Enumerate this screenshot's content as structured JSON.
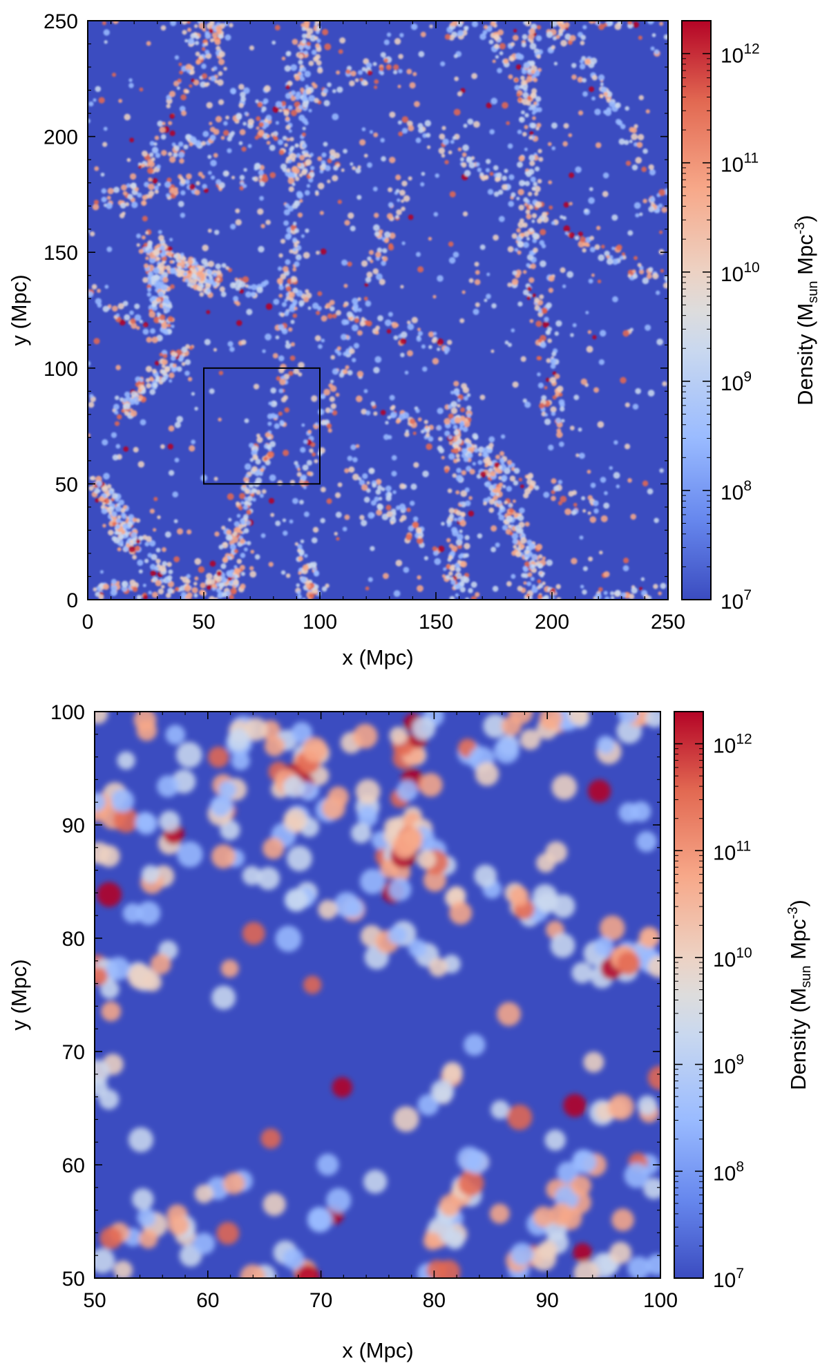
{
  "chart_data": [
    {
      "type": "heatmap",
      "name": "full-box",
      "xlabel": "x (Mpc)",
      "ylabel": "y (Mpc)",
      "xlim": [
        0,
        250
      ],
      "ylim": [
        0,
        250
      ],
      "xticks": [
        0,
        50,
        100,
        150,
        200,
        250
      ],
      "yticks": [
        0,
        50,
        100,
        150,
        200,
        250
      ],
      "xtick_labels": [
        "0",
        "50",
        "100",
        "150",
        "200",
        "250"
      ],
      "ytick_labels": [
        "0",
        "50",
        "100",
        "150",
        "200",
        "250"
      ],
      "colorbar": {
        "label_main": "Density (M",
        "label_sub": "sun",
        "label_mid": " Mpc",
        "label_sup": "-3",
        "label_end": ")",
        "scale": "log",
        "range": [
          10000000,
          2000000000000
        ],
        "ticks": [
          7,
          8,
          9,
          10,
          11,
          12
        ],
        "tick_base": "10",
        "tick_exponents": [
          "7",
          "8",
          "9",
          "10",
          "11",
          "12"
        ]
      },
      "inset_box": {
        "x": [
          50,
          100
        ],
        "y": [
          50,
          100
        ]
      },
      "colormap": [
        "#3b4cc0",
        "#6788ee",
        "#9abbff",
        "#c9d8ef",
        "#edd1c2",
        "#f7a889",
        "#e26952",
        "#b40426"
      ]
    },
    {
      "type": "heatmap",
      "name": "zoom",
      "xlabel": "x (Mpc)",
      "ylabel": "y (Mpc)",
      "xlim": [
        50,
        100
      ],
      "ylim": [
        50,
        100
      ],
      "xticks": [
        50,
        60,
        70,
        80,
        90,
        100
      ],
      "yticks": [
        50,
        60,
        70,
        80,
        90,
        100
      ],
      "xtick_labels": [
        "50",
        "60",
        "70",
        "80",
        "90",
        "100"
      ],
      "ytick_labels": [
        "50",
        "60",
        "70",
        "80",
        "90",
        "100"
      ],
      "colorbar": {
        "label_main": "Density (M",
        "label_sub": "sun",
        "label_mid": " Mpc",
        "label_sup": "-3",
        "label_end": ")",
        "scale": "log",
        "range": [
          10000000,
          2000000000000
        ],
        "ticks": [
          7,
          8,
          9,
          10,
          11,
          12
        ],
        "tick_base": "10",
        "tick_exponents": [
          "7",
          "8",
          "9",
          "10",
          "11",
          "12"
        ]
      },
      "colormap": [
        "#3b4cc0",
        "#6788ee",
        "#9abbff",
        "#c9d8ef",
        "#edd1c2",
        "#f7a889",
        "#e26952",
        "#b40426"
      ]
    }
  ]
}
